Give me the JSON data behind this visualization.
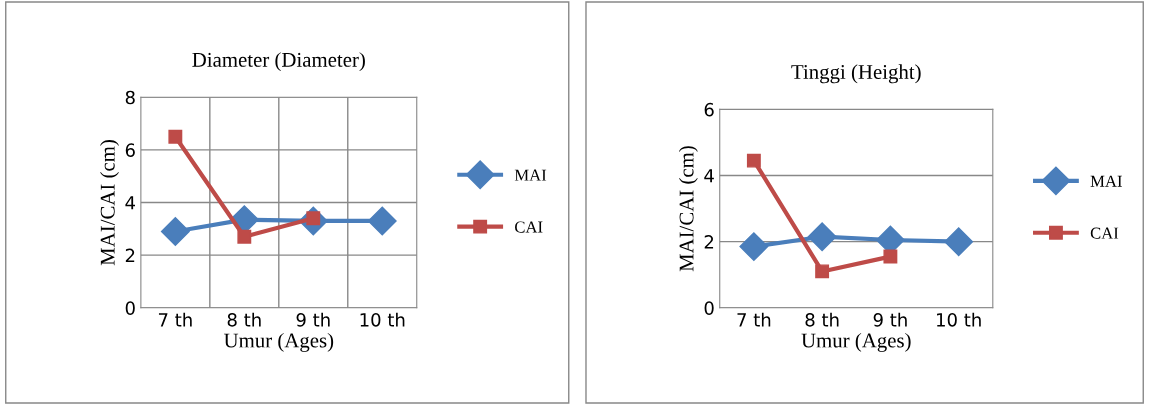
{
  "chart_data": [
    {
      "type": "line",
      "title": "Diameter (Diameter)",
      "xlabel": "Umur (Ages)",
      "ylabel": "MAI/CAI (cm)",
      "categories": [
        "7 th",
        "8 th",
        "9 th",
        "10 th"
      ],
      "ylim": [
        0,
        8
      ],
      "yticks": [
        0,
        2,
        4,
        6,
        8
      ],
      "grid": true,
      "legend": "right",
      "series": [
        {
          "name": "MAI",
          "color": "#4a7ebb",
          "marker": "diamond",
          "values": [
            2.9,
            3.35,
            3.3,
            3.3
          ]
        },
        {
          "name": "CAI",
          "color": "#be4b48",
          "marker": "square",
          "values": [
            6.5,
            2.7,
            3.4,
            null
          ]
        }
      ]
    },
    {
      "type": "line",
      "title": "Tinggi (Height)",
      "xlabel": "Umur (Ages)",
      "ylabel": "MAI/CAI (cm)",
      "categories": [
        "7 th",
        "8 th",
        "9 th",
        "10 th"
      ],
      "ylim": [
        0,
        6
      ],
      "yticks": [
        0,
        2,
        4,
        6
      ],
      "grid": "y",
      "legend": "right",
      "series": [
        {
          "name": "MAI",
          "color": "#4a7ebb",
          "marker": "diamond",
          "values": [
            1.85,
            2.15,
            2.05,
            2.0
          ]
        },
        {
          "name": "CAI",
          "color": "#be4b48",
          "marker": "square",
          "values": [
            4.45,
            1.1,
            1.55,
            null
          ]
        }
      ]
    }
  ]
}
